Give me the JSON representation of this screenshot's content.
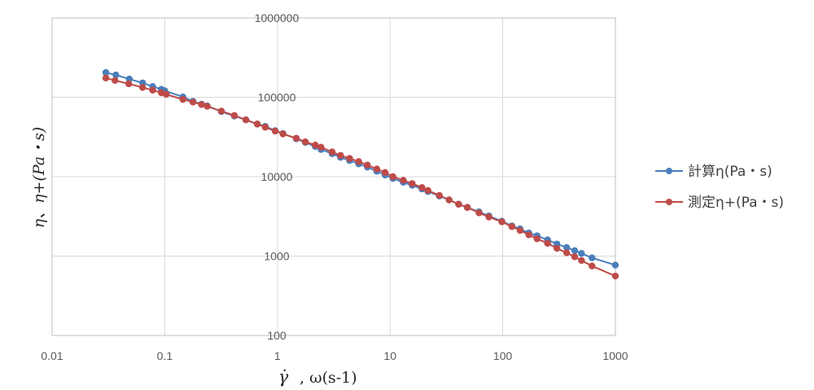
{
  "chart_data": {
    "type": "scatter",
    "x_scale": "log",
    "y_scale": "log",
    "xlim": [
      0.01,
      1000
    ],
    "ylim": [
      100,
      1000000
    ],
    "x_ticks": [
      "0.01",
      "0.1",
      "1",
      "10",
      "100",
      "1000"
    ],
    "y_ticks": [
      "100",
      "1000",
      "10000",
      "100000",
      "1000000"
    ],
    "xlabel_symbol": "γ̇",
    "xlabel_rest": ", ω(s-1)",
    "ylabel": "η、η+(Pa・s)",
    "grid": true,
    "legend_position": "right",
    "series": [
      {
        "name": "計算η(Pa・s)",
        "color": "#4a7ebb",
        "points": [
          [
            0.03,
            205000
          ],
          [
            0.0368,
            191000
          ],
          [
            0.0484,
            170000
          ],
          [
            0.0636,
            152000
          ],
          [
            0.0781,
            137000
          ],
          [
            0.0933,
            126000
          ],
          [
            0.1,
            121000
          ],
          [
            0.145,
            101000
          ],
          [
            0.178,
            89000
          ],
          [
            0.212,
            82000
          ],
          [
            0.238,
            78000
          ],
          [
            0.318,
            66000
          ],
          [
            0.415,
            58000
          ],
          [
            0.525,
            52000
          ],
          [
            0.663,
            46000
          ],
          [
            0.78,
            43000
          ],
          [
            0.955,
            38000
          ],
          [
            1.12,
            35000
          ],
          [
            1.47,
            30000
          ],
          [
            1.77,
            27000
          ],
          [
            2.17,
            24000
          ],
          [
            2.44,
            22000
          ],
          [
            3.06,
            19500
          ],
          [
            3.63,
            17500
          ],
          [
            4.37,
            16000
          ],
          [
            5.27,
            14500
          ],
          [
            6.29,
            13200
          ],
          [
            7.62,
            11700
          ],
          [
            9.04,
            10500
          ],
          [
            10.6,
            9500
          ],
          [
            13.1,
            8500
          ],
          [
            15.7,
            7800
          ],
          [
            19.2,
            7000
          ],
          [
            21.7,
            6500
          ],
          [
            27.4,
            5700
          ],
          [
            33.4,
            5100
          ],
          [
            40.6,
            4500
          ],
          [
            48.5,
            4100
          ],
          [
            61.6,
            3600
          ],
          [
            75.4,
            3200
          ],
          [
            98.2,
            2750
          ],
          [
            120.6,
            2400
          ],
          [
            142.6,
            2200
          ],
          [
            170.6,
            1950
          ],
          [
            201.8,
            1800
          ],
          [
            250,
            1600
          ],
          [
            302.7,
            1420
          ],
          [
            369.6,
            1280
          ],
          [
            435.5,
            1170
          ],
          [
            500,
            1080
          ],
          [
            620,
            950
          ],
          [
            1000,
            770
          ]
        ]
      },
      {
        "name": "測定η+(Pa・s)",
        "color": "#be4b48",
        "points": [
          [
            0.03,
            175000
          ],
          [
            0.0362,
            163000
          ],
          [
            0.0479,
            148000
          ],
          [
            0.0636,
            133000
          ],
          [
            0.0781,
            123000
          ],
          [
            0.0933,
            114000
          ],
          [
            0.103,
            109000
          ],
          [
            0.145,
            94000
          ],
          [
            0.178,
            87000
          ],
          [
            0.212,
            81000
          ],
          [
            0.238,
            77000
          ],
          [
            0.318,
            67000
          ],
          [
            0.415,
            59000
          ],
          [
            0.525,
            52000
          ],
          [
            0.663,
            46000
          ],
          [
            0.78,
            42000
          ],
          [
            0.955,
            37500
          ],
          [
            1.12,
            34500
          ],
          [
            1.47,
            30500
          ],
          [
            1.77,
            27500
          ],
          [
            2.17,
            25000
          ],
          [
            2.44,
            23500
          ],
          [
            3.06,
            20500
          ],
          [
            3.63,
            18500
          ],
          [
            4.37,
            17000
          ],
          [
            5.27,
            15500
          ],
          [
            6.29,
            14000
          ],
          [
            7.62,
            12500
          ],
          [
            9.04,
            11300
          ],
          [
            10.6,
            10000
          ],
          [
            13.1,
            9000
          ],
          [
            15.7,
            8200
          ],
          [
            19.2,
            7300
          ],
          [
            21.7,
            6700
          ],
          [
            27.4,
            5800
          ],
          [
            33.4,
            5100
          ],
          [
            40.6,
            4500
          ],
          [
            48.5,
            4100
          ],
          [
            61.6,
            3500
          ],
          [
            75.4,
            3100
          ],
          [
            98.2,
            2700
          ],
          [
            120.6,
            2350
          ],
          [
            142.6,
            2100
          ],
          [
            170.6,
            1850
          ],
          [
            201.8,
            1650
          ],
          [
            250,
            1450
          ],
          [
            302.7,
            1250
          ],
          [
            369.6,
            1100
          ],
          [
            435.5,
            980
          ],
          [
            500,
            880
          ],
          [
            620,
            750
          ],
          [
            1000,
            560
          ]
        ]
      }
    ]
  }
}
